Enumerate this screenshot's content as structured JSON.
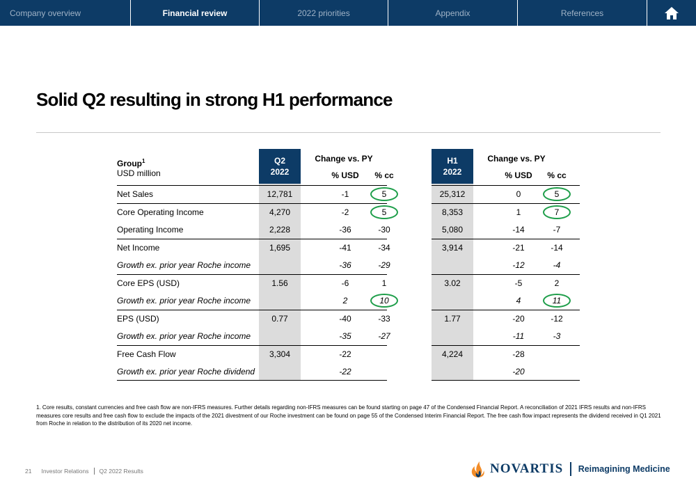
{
  "nav": {
    "tabs": [
      {
        "label": "Company overview",
        "active": false
      },
      {
        "label": "Financial review",
        "active": true
      },
      {
        "label": "2022 priorities",
        "active": false
      },
      {
        "label": "Appendix",
        "active": false
      },
      {
        "label": "References",
        "active": false
      }
    ],
    "home_icon": "home-icon"
  },
  "title": "Solid Q2 resulting in strong H1 performance",
  "table": {
    "group_label": "Group",
    "group_sup": "1",
    "unit_label": "USD million",
    "q2_header": {
      "line1": "Q2",
      "line2": "2022"
    },
    "h1_header": {
      "line1": "H1",
      "line2": "2022"
    },
    "change_header": "Change vs. PY",
    "usd_header": "% USD",
    "cc_header": "% cc",
    "rows": [
      {
        "label": "Net Sales",
        "italic": false,
        "q2": "12,781",
        "q2_usd": "-1",
        "q2_cc": "5",
        "h1": "25,312",
        "h1_usd": "0",
        "h1_cc": "5",
        "line_above": true
      },
      {
        "label": "Core Operating Income",
        "italic": false,
        "q2": "4,270",
        "q2_usd": "-2",
        "q2_cc": "5",
        "h1": "8,353",
        "h1_usd": "1",
        "h1_cc": "7",
        "line_above": true
      },
      {
        "label": "Operating Income",
        "italic": false,
        "q2": "2,228",
        "q2_usd": "-36",
        "q2_cc": "-30",
        "h1": "5,080",
        "h1_usd": "-14",
        "h1_cc": "-7",
        "line_above": false
      },
      {
        "label": "Net Income",
        "italic": false,
        "q2": "1,695",
        "q2_usd": "-41",
        "q2_cc": "-34",
        "h1": "3,914",
        "h1_usd": "-21",
        "h1_cc": "-14",
        "line_above": true
      },
      {
        "label": "Growth ex. prior year Roche income",
        "italic": true,
        "q2": "",
        "q2_usd": "-36",
        "q2_cc": "-29",
        "h1": "",
        "h1_usd": "-12",
        "h1_cc": "-4",
        "line_above": false
      },
      {
        "label": "Core EPS (USD)",
        "italic": false,
        "q2": "1.56",
        "q2_usd": "-6",
        "q2_cc": "1",
        "h1": "3.02",
        "h1_usd": "-5",
        "h1_cc": "2",
        "line_above": true
      },
      {
        "label": "Growth ex. prior year Roche income",
        "italic": true,
        "q2": "",
        "q2_usd": "2",
        "q2_cc": "10",
        "h1": "",
        "h1_usd": "4",
        "h1_cc": "11",
        "line_above": false
      },
      {
        "label": "EPS (USD)",
        "italic": false,
        "q2": "0.77",
        "q2_usd": "-40",
        "q2_cc": "-33",
        "h1": "1.77",
        "h1_usd": "-20",
        "h1_cc": "-12",
        "line_above": true
      },
      {
        "label": "Growth ex. prior year Roche income",
        "italic": true,
        "q2": "",
        "q2_usd": "-35",
        "q2_cc": "-27",
        "h1": "",
        "h1_usd": "-11",
        "h1_cc": "-3",
        "line_above": false
      },
      {
        "label": "Free Cash Flow",
        "italic": false,
        "q2": "3,304",
        "q2_usd": "-22",
        "q2_cc": "",
        "h1": "4,224",
        "h1_usd": "-28",
        "h1_cc": "",
        "line_above": true
      },
      {
        "label": "Growth ex. prior year Roche dividend",
        "italic": true,
        "q2": "",
        "q2_usd": "-22",
        "q2_cc": "",
        "h1": "",
        "h1_usd": "-20",
        "h1_cc": "",
        "line_above": false
      }
    ],
    "highlight_color": "#1e9e4a"
  },
  "footnote": "1. Core results, constant currencies and free cash flow are non-IFRS measures. Further details regarding non-IFRS measures can be found starting on page 47 of the Condensed Financial Report. A reconciliation of 2021 IFRS results and non-IFRS measures core results and free cash flow to exclude the impacts of the 2021 divestment of our Roche investment can be found on page 55 of the Condensed Interim Financial Report. The free cash flow impact represents the dividend received in Q1 2021 from Roche in relation to the distribution of its 2020 net income.",
  "footer": {
    "page": "21",
    "section": "Investor Relations",
    "doc": "Q2 2022 Results"
  },
  "brand": {
    "name": "NOVARTIS",
    "tagline": "Reimagining Medicine",
    "logo_icon": "novartis-flame-icon",
    "color": "#0d3b66"
  }
}
